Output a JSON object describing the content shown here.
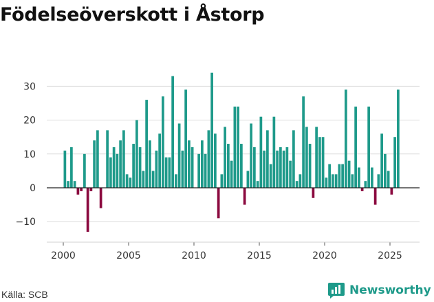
{
  "chart_data": {
    "type": "bar",
    "title": "Födelseöverskott i Åstorp",
    "xlabel": "",
    "ylabel": "",
    "ylim": [
      -15,
      35
    ],
    "xlim": [
      1999.3,
      2027.2
    ],
    "yticks": [
      -10,
      0,
      10,
      20,
      30
    ],
    "ytick_labels": [
      "−10",
      "0",
      "10",
      "20",
      "30"
    ],
    "xticks": [
      2000,
      2005,
      2010,
      2015,
      2020,
      2025
    ],
    "xtick_labels": [
      "2000",
      "2005",
      "2010",
      "2015",
      "2020",
      "2025"
    ],
    "grid": true,
    "period": "quarterly",
    "start": 2000.0,
    "positive_color": "#1e9a8a",
    "negative_color": "#8b0a3f",
    "values": [
      11,
      2,
      12,
      2,
      -2,
      -1,
      10,
      -13,
      -1,
      14,
      17,
      -6,
      0,
      17,
      9,
      12,
      10,
      14,
      17,
      4,
      3,
      13,
      20,
      12,
      5,
      26,
      14,
      5,
      11,
      16,
      27,
      9,
      9,
      33,
      4,
      19,
      11,
      29,
      14,
      12,
      0,
      10,
      14,
      10,
      17,
      34,
      16,
      -9,
      4,
      18,
      13,
      8,
      24,
      24,
      13,
      -5,
      5,
      19,
      12,
      2,
      21,
      11,
      17,
      7,
      21,
      11,
      12,
      11,
      12,
      8,
      17,
      2,
      4,
      27,
      18,
      13,
      -3,
      18,
      15,
      15,
      3,
      7,
      4,
      4,
      7,
      7,
      29,
      8,
      4,
      24,
      6,
      -1,
      2,
      24,
      6,
      -5,
      4,
      16,
      10,
      5,
      -2,
      15,
      29
    ]
  },
  "footer": {
    "source": "Källa: SCB",
    "brand": "Newsworthy",
    "brand_color": "#1e9a8a"
  }
}
